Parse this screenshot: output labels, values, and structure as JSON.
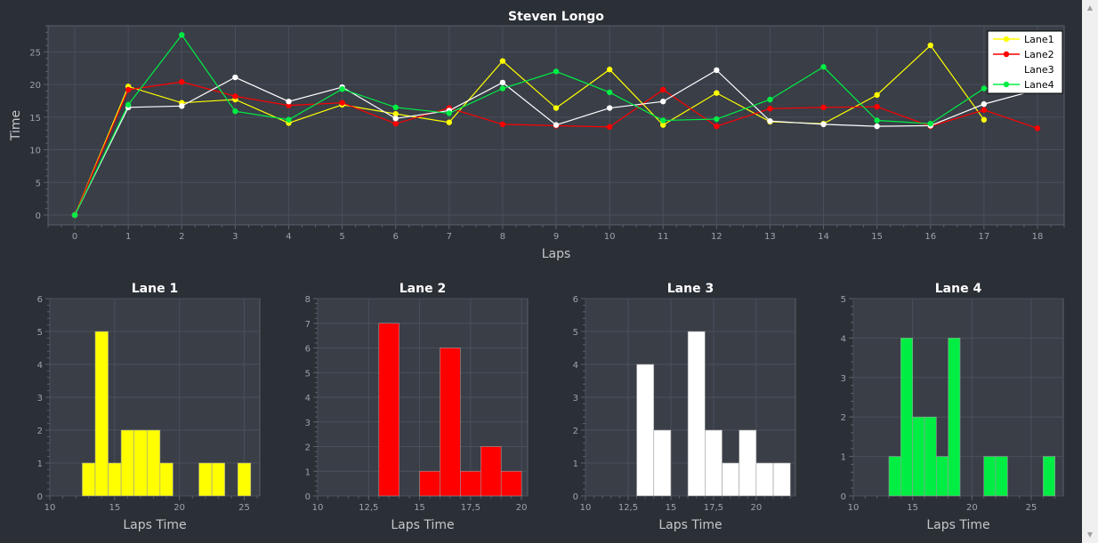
{
  "chart_data": [
    {
      "type": "line",
      "title": "Steven Longo",
      "xlabel": "Laps",
      "ylabel": "Time",
      "xlim": [
        -0.5,
        18.5
      ],
      "ylim": [
        -1.5,
        29
      ],
      "xticks": [
        0,
        1,
        2,
        3,
        4,
        5,
        6,
        7,
        8,
        9,
        10,
        11,
        12,
        13,
        14,
        15,
        16,
        17,
        18
      ],
      "yticks": [
        0,
        5,
        10,
        15,
        20,
        25
      ],
      "grid": true,
      "legend": "top-right",
      "x": [
        0,
        1,
        2,
        3,
        4,
        5,
        6,
        7,
        8,
        9,
        10,
        11,
        12,
        13,
        14,
        15,
        16,
        17,
        18
      ],
      "series": [
        {
          "name": "Lane1",
          "color": "#ffff00",
          "values": [
            0,
            19.7,
            17.2,
            17.7,
            14.1,
            16.9,
            15.5,
            14.2,
            23.6,
            16.4,
            22.3,
            13.8,
            18.7,
            14.3,
            14.0,
            18.4,
            26.0,
            14.6,
            null
          ]
        },
        {
          "name": "Lane2",
          "color": "#ff0000",
          "values": [
            0,
            19.2,
            20.4,
            18.2,
            16.8,
            17.2,
            14.0,
            16.4,
            13.9,
            13.7,
            13.5,
            19.2,
            13.6,
            16.3,
            16.5,
            16.6,
            13.6,
            16.1,
            13.3
          ]
        },
        {
          "name": "Lane3",
          "color": "#ffffff",
          "values": [
            0,
            16.5,
            16.7,
            21.1,
            17.4,
            19.6,
            14.8,
            16.0,
            20.3,
            13.8,
            16.4,
            17.4,
            22.2,
            14.4,
            13.9,
            13.6,
            13.7,
            17.0,
            19.2
          ]
        },
        {
          "name": "Lane4",
          "color": "#00ee44",
          "values": [
            0,
            16.9,
            27.6,
            15.9,
            14.6,
            19.3,
            16.5,
            15.6,
            19.4,
            22.0,
            18.8,
            14.5,
            14.7,
            17.7,
            22.7,
            14.5,
            14.0,
            19.4,
            19.2
          ]
        }
      ]
    },
    {
      "type": "bar",
      "title": "Lane 1",
      "xlabel": "Laps Time",
      "ylabel": "",
      "color": "#ffff00",
      "xlim": [
        10,
        26.2
      ],
      "ylim": [
        0,
        6
      ],
      "xticks": [
        10,
        15,
        20,
        25
      ],
      "xticklabels": [
        "10",
        "15",
        "20",
        "25"
      ],
      "yticks": [
        0,
        1,
        2,
        3,
        4,
        5,
        6
      ],
      "bins": [
        [
          12.5,
          13.5,
          1
        ],
        [
          13.5,
          14.5,
          5
        ],
        [
          14.5,
          15.5,
          1
        ],
        [
          15.5,
          16.5,
          2
        ],
        [
          16.5,
          17.5,
          2
        ],
        [
          17.5,
          18.5,
          2
        ],
        [
          18.5,
          19.5,
          1
        ],
        [
          21.5,
          22.5,
          1
        ],
        [
          22.5,
          23.5,
          1
        ],
        [
          24.5,
          25.5,
          1
        ]
      ]
    },
    {
      "type": "bar",
      "title": "Lane 2",
      "xlabel": "Laps Time",
      "ylabel": "",
      "color": "#ff0000",
      "xlim": [
        10,
        20.3
      ],
      "ylim": [
        0,
        8
      ],
      "xticks": [
        10,
        12.5,
        15,
        17.5,
        20
      ],
      "xticklabels": [
        "10",
        "12,5",
        "15",
        "17,5",
        "20"
      ],
      "yticks": [
        0,
        1,
        2,
        3,
        4,
        5,
        6,
        7,
        8
      ],
      "bins": [
        [
          13,
          14,
          7
        ],
        [
          15,
          16,
          1
        ],
        [
          16,
          17,
          6
        ],
        [
          17,
          18,
          1
        ],
        [
          18,
          19,
          2
        ],
        [
          19,
          20,
          1
        ]
      ]
    },
    {
      "type": "bar",
      "title": "Lane 3",
      "xlabel": "Laps Time",
      "ylabel": "",
      "color": "#ffffff",
      "xlim": [
        10,
        22.3
      ],
      "ylim": [
        0,
        6
      ],
      "xticks": [
        10,
        12.5,
        15,
        17.5,
        20
      ],
      "xticklabels": [
        "10",
        "12,5",
        "15",
        "17,5",
        "20"
      ],
      "yticks": [
        0,
        1,
        2,
        3,
        4,
        5,
        6
      ],
      "bins": [
        [
          13,
          14,
          4
        ],
        [
          14,
          15,
          2
        ],
        [
          16,
          17,
          5
        ],
        [
          17,
          18,
          2
        ],
        [
          18,
          19,
          1
        ],
        [
          19,
          20,
          2
        ],
        [
          20,
          21,
          1
        ],
        [
          21,
          22,
          1
        ]
      ]
    },
    {
      "type": "bar",
      "title": "Lane 4",
      "xlabel": "Laps Time",
      "ylabel": "",
      "color": "#00ee44",
      "xlim": [
        10,
        27.7
      ],
      "ylim": [
        0,
        5
      ],
      "xticks": [
        10,
        15,
        20,
        25
      ],
      "xticklabels": [
        "10",
        "15",
        "20",
        "25"
      ],
      "yticks": [
        0,
        1,
        2,
        3,
        4,
        5
      ],
      "bins": [
        [
          13,
          14,
          1
        ],
        [
          14,
          15,
          4
        ],
        [
          15,
          16,
          2
        ],
        [
          16,
          17,
          2
        ],
        [
          17,
          18,
          1
        ],
        [
          18,
          19,
          4
        ],
        [
          21,
          22,
          1
        ],
        [
          22,
          23,
          1
        ],
        [
          26,
          27,
          1
        ]
      ]
    }
  ],
  "scrollbar": {
    "up_icon": "triangle-up",
    "down_icon": "triangle-down"
  }
}
